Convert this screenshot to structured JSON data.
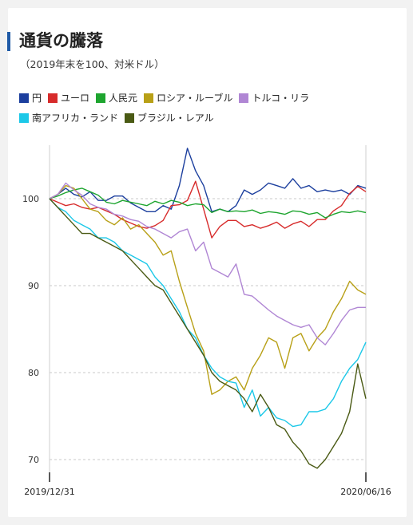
{
  "title": "通貨の騰落",
  "subtitle": "（2019年末を100、対米ドル）",
  "chart_data": {
    "type": "line",
    "x_start": "2019/12/31",
    "x_end": "2020/06/16",
    "x_tick_labels": [
      "2019/12/31",
      "2020/06/16"
    ],
    "ylim": [
      67,
      106
    ],
    "y_ticks": [
      70,
      80,
      90,
      100
    ],
    "grid": true,
    "legend": "top",
    "series": [
      {
        "name": "円",
        "color": "#1c3f9e",
        "values": [
          100,
          100.5,
          101.2,
          100.5,
          100.2,
          100.8,
          99.8,
          99.8,
          100.3,
          100.3,
          99.5,
          99,
          98.5,
          98.5,
          99.2,
          98.8,
          101.5,
          105.8,
          103.2,
          101.5,
          98.5,
          98.8,
          98.5,
          99.2,
          101,
          100.5,
          101,
          101.8,
          101.5,
          101.2,
          102.3,
          101.2,
          101.5,
          100.8,
          101,
          100.8,
          101,
          100.5,
          101.5,
          101.2
        ]
      },
      {
        "name": "ユーロ",
        "color": "#d72b2b",
        "values": [
          100,
          99.6,
          99.2,
          99.4,
          99,
          98.8,
          99,
          98.6,
          98.2,
          97.6,
          97.2,
          96.8,
          96.6,
          96.9,
          97.5,
          99.2,
          99.3,
          99.8,
          102,
          98.8,
          95.5,
          96.8,
          97.5,
          97.5,
          96.8,
          97,
          96.6,
          96.9,
          97.3,
          96.6,
          97.1,
          97.4,
          96.8,
          97.6,
          97.6,
          98.6,
          99.2,
          100.6,
          101.4,
          100.8
        ]
      },
      {
        "name": "人民元",
        "color": "#1ea52f",
        "values": [
          100,
          100.3,
          100.7,
          101,
          101.2,
          100.8,
          100.4,
          99.6,
          99.4,
          99.8,
          99.6,
          99.4,
          99.2,
          99.7,
          99.4,
          99.8,
          99.6,
          99.2,
          99.4,
          99.3,
          98.4,
          98.8,
          98.5,
          98.6,
          98.5,
          98.7,
          98.3,
          98.5,
          98.4,
          98.2,
          98.6,
          98.5,
          98.2,
          98.4,
          97.8,
          98.2,
          98.5,
          98.4,
          98.6,
          98.4
        ]
      },
      {
        "name": "ロシア・ルーブル",
        "color": "#b8a017",
        "values": [
          100,
          100.5,
          101.5,
          101.2,
          100,
          98.8,
          98.5,
          97.5,
          97,
          97.8,
          96.5,
          97,
          96,
          95,
          93.5,
          94,
          90.5,
          87.5,
          84.5,
          82.5,
          77.5,
          78,
          79,
          79.5,
          78,
          80.5,
          82,
          84,
          83.5,
          80.5,
          84,
          84.5,
          82.5,
          84,
          85,
          87,
          88.5,
          90.5,
          89.5,
          89
        ]
      },
      {
        "name": "トルコ・リラ",
        "color": "#b086d4",
        "values": [
          100,
          100.5,
          101.8,
          101,
          100.4,
          99.4,
          99,
          98.8,
          98.2,
          98,
          97.6,
          97.4,
          96.8,
          96.5,
          96,
          95.5,
          96.2,
          96.5,
          94,
          95,
          92,
          91.5,
          91,
          92.5,
          89,
          88.8,
          88,
          87.2,
          86.5,
          86,
          85.5,
          85.2,
          85.5,
          84,
          83.2,
          84.5,
          86,
          87.2,
          87.5,
          87.5
        ]
      },
      {
        "name": "南アフリカ・ランド",
        "color": "#1cc8e8",
        "values": [
          100,
          99,
          98.5,
          97.5,
          97,
          96.5,
          95.5,
          95.5,
          95,
          94,
          93.5,
          93,
          92.5,
          91,
          90,
          88.5,
          87,
          85,
          84,
          82,
          80.5,
          79.5,
          79,
          78.8,
          76,
          78,
          75,
          76,
          74.8,
          74.5,
          73.8,
          74,
          75.5,
          75.5,
          75.8,
          77,
          79,
          80.5,
          81.5,
          83.5
        ]
      },
      {
        "name": "ブラジル・レアル",
        "color": "#4a5a14",
        "values": [
          100,
          99,
          98,
          97,
          96,
          96,
          95.5,
          95,
          94.5,
          94,
          93,
          92,
          91,
          90,
          89.5,
          88,
          86.5,
          85,
          83.5,
          82,
          80,
          79,
          78.5,
          78,
          77,
          75.5,
          77.5,
          76,
          74,
          73.5,
          72,
          71,
          69.5,
          69,
          70,
          71.5,
          73,
          75.5,
          81,
          77
        ]
      }
    ]
  }
}
